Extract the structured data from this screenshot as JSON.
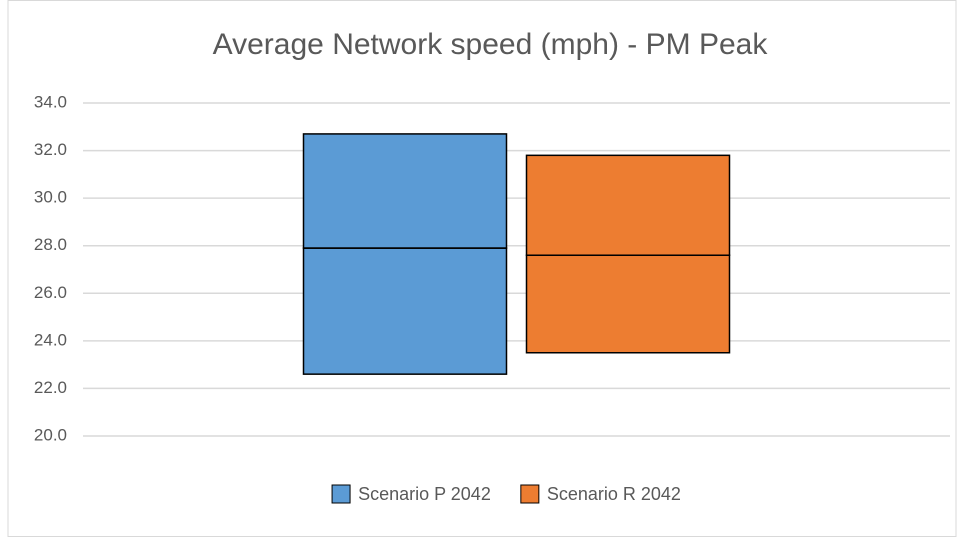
{
  "chart_data": {
    "type": "box",
    "title": "Average Network speed (mph) - PM Peak",
    "series": [
      {
        "name": "Scenario P 2042",
        "color": "#5b9bd5",
        "low": 22.6,
        "median": 27.9,
        "high": 32.7
      },
      {
        "name": "Scenario R 2042",
        "color": "#ed7d31",
        "low": 23.5,
        "median": 27.6,
        "high": 31.8
      }
    ],
    "ylim": [
      20,
      34
    ],
    "yticks": [
      {
        "value": 20,
        "label": "20.0"
      },
      {
        "value": 22,
        "label": "22.0"
      },
      {
        "value": 24,
        "label": "24.0"
      },
      {
        "value": 26,
        "label": "26.0"
      },
      {
        "value": 28,
        "label": "28.0"
      },
      {
        "value": 30,
        "label": "30.0"
      },
      {
        "value": 32,
        "label": "32.0"
      },
      {
        "value": 34,
        "label": "34.0"
      }
    ],
    "grid": true,
    "legend": "bottom"
  }
}
